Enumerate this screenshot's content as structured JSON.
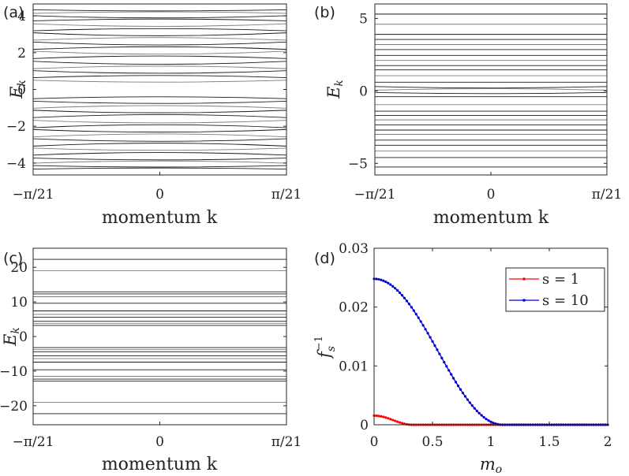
{
  "chart_data": [
    {
      "panel_label": "(a)",
      "type": "line",
      "xlabel": "momentum k",
      "ylabel": "E_k",
      "xticks": [
        "−π/21",
        "0",
        "π/21"
      ],
      "yticks": [
        "-4",
        "-2",
        "0",
        "2",
        "4"
      ],
      "ylim": [
        -4.65,
        4.65
      ],
      "bands": [
        {
          "e": 4.3,
          "w": 0.03
        },
        {
          "e": 4.18,
          "w": -0.04
        },
        {
          "e": 3.95,
          "w": 0.06
        },
        {
          "e": 3.78,
          "w": -0.05
        },
        {
          "e": 3.5,
          "w": 0.07
        },
        {
          "e": 3.25,
          "w": -0.06
        },
        {
          "e": 3.0,
          "w": 0.08
        },
        {
          "e": 2.75,
          "w": -0.07
        },
        {
          "e": 2.5,
          "w": 0.08
        },
        {
          "e": 2.25,
          "w": -0.07
        },
        {
          "e": 2.0,
          "w": 0.08
        },
        {
          "e": 1.75,
          "w": -0.07
        },
        {
          "e": 1.45,
          "w": 0.08
        },
        {
          "e": 1.2,
          "w": -0.07
        },
        {
          "e": 0.95,
          "w": 0.07
        },
        {
          "e": 0.7,
          "w": -0.06
        },
        {
          "e": 0.45,
          "w": 0.05
        },
        {
          "e": -0.45,
          "w": -0.05
        },
        {
          "e": -0.7,
          "w": 0.06
        },
        {
          "e": -0.95,
          "w": -0.07
        },
        {
          "e": -1.2,
          "w": 0.07
        },
        {
          "e": -1.45,
          "w": -0.08
        },
        {
          "e": -1.75,
          "w": 0.07
        },
        {
          "e": -2.0,
          "w": -0.08
        },
        {
          "e": -2.25,
          "w": 0.07
        },
        {
          "e": -2.5,
          "w": -0.08
        },
        {
          "e": -2.75,
          "w": 0.07
        },
        {
          "e": -3.0,
          "w": -0.08
        },
        {
          "e": -3.25,
          "w": 0.06
        },
        {
          "e": -3.5,
          "w": -0.07
        },
        {
          "e": -3.78,
          "w": 0.05
        },
        {
          "e": -3.95,
          "w": -0.06
        },
        {
          "e": -4.18,
          "w": 0.04
        },
        {
          "e": -4.3,
          "w": -0.03
        }
      ]
    },
    {
      "panel_label": "(b)",
      "type": "line",
      "xlabel": "momentum k",
      "ylabel": "E_k",
      "xticks": [
        "−π/21",
        "0",
        "π/21"
      ],
      "yticks": [
        "-5",
        "0",
        "5"
      ],
      "ylim": [
        -5.8,
        6.0
      ],
      "bands": [
        {
          "e": 5.3,
          "w": 0
        },
        {
          "e": 4.6,
          "w": 0
        },
        {
          "e": 3.9,
          "w": 0
        },
        {
          "e": 3.55,
          "w": 0
        },
        {
          "e": 3.2,
          "w": 0
        },
        {
          "e": 2.85,
          "w": 0
        },
        {
          "e": 2.45,
          "w": 0
        },
        {
          "e": 2.1,
          "w": 0
        },
        {
          "e": 1.75,
          "w": 0
        },
        {
          "e": 1.45,
          "w": 0
        },
        {
          "e": 1.05,
          "w": 0
        },
        {
          "e": 0.6,
          "w": 0
        },
        {
          "e": 0.25,
          "w": 0.05
        },
        {
          "e": 0.1,
          "w": -0.05
        },
        {
          "e": -0.15,
          "w": 0.04
        },
        {
          "e": -0.4,
          "w": 0
        },
        {
          "e": -0.95,
          "w": 0
        },
        {
          "e": -1.4,
          "w": 0
        },
        {
          "e": -1.7,
          "w": 0
        },
        {
          "e": -2.0,
          "w": 0
        },
        {
          "e": -2.35,
          "w": 0
        },
        {
          "e": -2.7,
          "w": 0
        },
        {
          "e": -3.0,
          "w": 0
        },
        {
          "e": -3.4,
          "w": 0
        },
        {
          "e": -3.75,
          "w": 0
        },
        {
          "e": -4.15,
          "w": 0
        },
        {
          "e": -4.6,
          "w": 0
        },
        {
          "e": -5.25,
          "w": 0
        }
      ]
    },
    {
      "panel_label": "(c)",
      "type": "line",
      "xlabel": "momentum k",
      "ylabel": "E_k",
      "xticks": [
        "−π/21",
        "0",
        "π/21"
      ],
      "yticks": [
        "-20",
        "-10",
        "0",
        "10",
        "20"
      ],
      "ylim": [
        -25.5,
        25.5
      ],
      "bands": [
        {
          "e": 22.3
        },
        {
          "e": 19.0
        },
        {
          "e": 12.9
        },
        {
          "e": 12.3
        },
        {
          "e": 11.5
        },
        {
          "e": 9.6
        },
        {
          "e": 7.4
        },
        {
          "e": 6.4
        },
        {
          "e": 5.6
        },
        {
          "e": 4.4
        },
        {
          "e": 3.8
        },
        {
          "e": 3.2
        },
        {
          "e": -3.2
        },
        {
          "e": -3.8
        },
        {
          "e": -4.4
        },
        {
          "e": -5.6
        },
        {
          "e": -6.4
        },
        {
          "e": -7.4
        },
        {
          "e": -9.6
        },
        {
          "e": -11.5
        },
        {
          "e": -12.3
        },
        {
          "e": -12.9
        },
        {
          "e": -19.0
        },
        {
          "e": -22.3
        }
      ]
    },
    {
      "panel_label": "(d)",
      "type": "line",
      "xlabel": "m_o",
      "ylabel": "f_s^{-1}",
      "xlim": [
        0,
        2
      ],
      "ylim": [
        0,
        0.03
      ],
      "xticks": [
        "0",
        "0.5",
        "1",
        "1.5",
        "2"
      ],
      "yticks": [
        "0",
        "0.01",
        "0.02",
        "0.03"
      ],
      "series": [
        {
          "name": "s = 1",
          "color": "#ff0000",
          "amplitude": 0.00155,
          "width": 0.33
        },
        {
          "name": "s = 10",
          "color": "#0000cc",
          "amplitude": 0.0248,
          "width": 1.1
        }
      ],
      "legend_position": "top-right"
    }
  ]
}
